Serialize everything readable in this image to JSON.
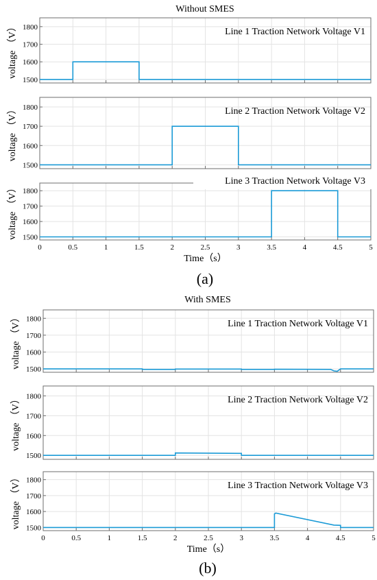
{
  "figure": {
    "panel_a_caption": "(a)",
    "panel_b_caption": "(b)"
  },
  "chart_data": [
    {
      "type": "line",
      "group": "a",
      "group_title": "Without SMES",
      "title": "Line 1 Traction Network Voltage V1",
      "xlabel": "",
      "ylabel": "voltage （V）",
      "xlim": [
        0,
        5
      ],
      "ylim": [
        1480,
        1850
      ],
      "yticks": [
        1500,
        1600,
        1700,
        1800
      ],
      "xticks": [
        0,
        0.5,
        1,
        1.5,
        2,
        2.5,
        3,
        3.5,
        4,
        4.5,
        5
      ],
      "show_xticklabels": false,
      "grid": true,
      "line_color": "#1a9ad6",
      "series": [
        {
          "x": [
            0,
            0.5,
            0.5,
            1.5,
            1.5,
            5
          ],
          "y": [
            1500,
            1500,
            1600,
            1600,
            1500,
            1500
          ]
        }
      ]
    },
    {
      "type": "line",
      "group": "a",
      "title": "Line 2 Traction Network Voltage V2",
      "xlabel": "",
      "ylabel": "voltage （V）",
      "xlim": [
        0,
        5
      ],
      "ylim": [
        1480,
        1850
      ],
      "yticks": [
        1500,
        1600,
        1700,
        1800
      ],
      "xticks": [
        0,
        0.5,
        1,
        1.5,
        2,
        2.5,
        3,
        3.5,
        4,
        4.5,
        5
      ],
      "show_xticklabels": false,
      "grid": true,
      "line_color": "#1a9ad6",
      "series": [
        {
          "x": [
            0,
            2,
            2,
            3,
            3,
            5
          ],
          "y": [
            1500,
            1500,
            1700,
            1700,
            1500,
            1500
          ]
        }
      ]
    },
    {
      "type": "line",
      "group": "a",
      "title": "Line 3 Traction Network Voltage V3",
      "xlabel": "Time（s）",
      "ylabel": "voltage （V）",
      "xlim": [
        0,
        5
      ],
      "ylim": [
        1480,
        1850
      ],
      "yticks": [
        1500,
        1600,
        1700,
        1800
      ],
      "xticks": [
        0,
        0.5,
        1,
        1.5,
        2,
        2.5,
        3,
        3.5,
        4,
        4.5,
        5
      ],
      "xticklabels": [
        "0",
        "0.5",
        "1",
        "1.5",
        "2",
        "2.5",
        "3",
        "3.5",
        "4",
        "4.5",
        "5"
      ],
      "show_xticklabels": true,
      "grid": true,
      "line_color": "#1a9ad6",
      "series": [
        {
          "x": [
            0,
            3.5,
            3.5,
            4.5,
            4.5,
            5
          ],
          "y": [
            1500,
            1500,
            1800,
            1800,
            1500,
            1500
          ]
        }
      ]
    },
    {
      "type": "line",
      "group": "b",
      "group_title": "With SMES",
      "title": "Line 1 Traction Network Voltage V1",
      "xlabel": "",
      "ylabel": "voltage （V）",
      "xlim": [
        0,
        5
      ],
      "ylim": [
        1480,
        1850
      ],
      "yticks": [
        1500,
        1600,
        1700,
        1800
      ],
      "xticks": [
        0,
        0.5,
        1,
        1.5,
        2,
        2.5,
        3,
        3.5,
        4,
        4.5,
        5
      ],
      "show_xticklabels": false,
      "grid": true,
      "line_color": "#1a9ad6",
      "series": [
        {
          "x": [
            0,
            1.5,
            1.5,
            2,
            2,
            3,
            3,
            3.5,
            3.5,
            4.35,
            4.4,
            4.45,
            4.5,
            5
          ],
          "y": [
            1500,
            1500,
            1497,
            1497,
            1499,
            1499,
            1497,
            1497,
            1498,
            1497,
            1488,
            1486,
            1500,
            1500
          ]
        }
      ]
    },
    {
      "type": "line",
      "group": "b",
      "title": "Line 2 Traction Network Voltage V2",
      "xlabel": "",
      "ylabel": "voltage （V）",
      "xlim": [
        0,
        5
      ],
      "ylim": [
        1480,
        1850
      ],
      "yticks": [
        1500,
        1600,
        1700,
        1800
      ],
      "xticks": [
        0,
        0.5,
        1,
        1.5,
        2,
        2.5,
        3,
        3.5,
        4,
        4.5,
        5
      ],
      "show_xticklabels": false,
      "grid": true,
      "line_color": "#1a9ad6",
      "series": [
        {
          "x": [
            0,
            2,
            2,
            3,
            3,
            5
          ],
          "y": [
            1500,
            1500,
            1512,
            1510,
            1500,
            1500
          ]
        }
      ]
    },
    {
      "type": "line",
      "group": "b",
      "title": "Line 3 Traction Network Voltage V3",
      "xlabel": "Time（s）",
      "ylabel": "voltage （V）",
      "xlim": [
        0,
        5
      ],
      "ylim": [
        1480,
        1850
      ],
      "yticks": [
        1500,
        1600,
        1700,
        1800
      ],
      "xticks": [
        0,
        0.5,
        1,
        1.5,
        2,
        2.5,
        3,
        3.5,
        4,
        4.5,
        5
      ],
      "xticklabels": [
        "0",
        "0.5",
        "1",
        "1.5",
        "2",
        "2.5",
        "3",
        "3.5",
        "4",
        "4.5",
        "5"
      ],
      "show_xticklabels": true,
      "grid": true,
      "line_color": "#1a9ad6",
      "series": [
        {
          "x": [
            0,
            3.5,
            3.5,
            3.52,
            4.4,
            4.5,
            4.5,
            5
          ],
          "y": [
            1500,
            1500,
            1585,
            1590,
            1515,
            1513,
            1500,
            1500
          ]
        }
      ]
    }
  ]
}
